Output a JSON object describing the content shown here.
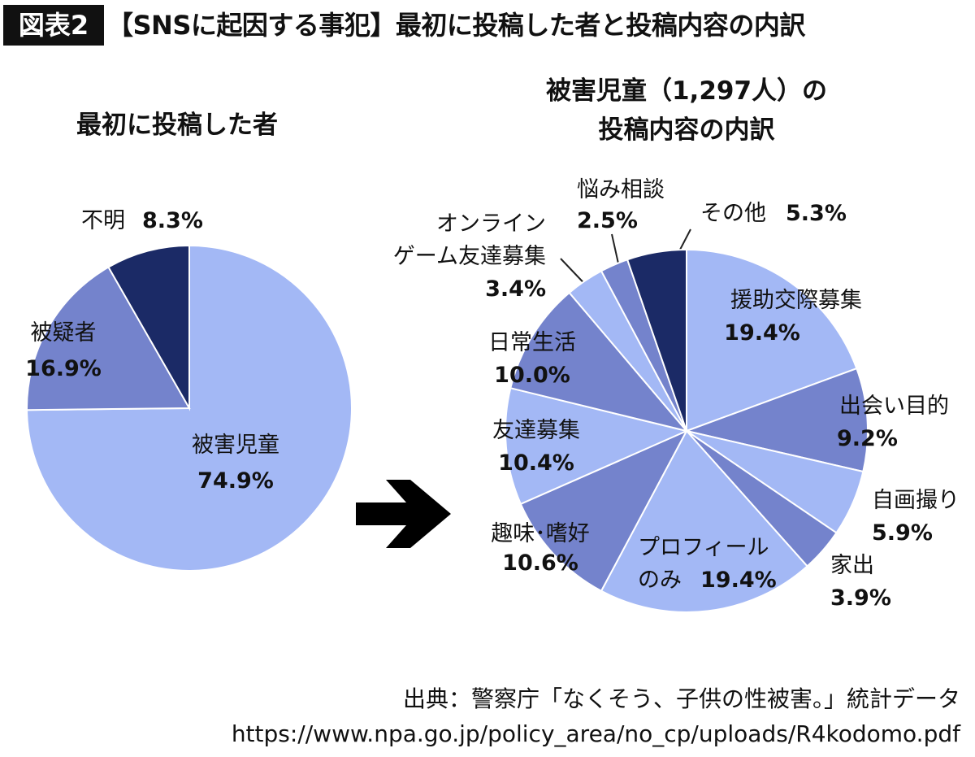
{
  "badge": "図表2",
  "title": "【SNSに起因する事犯】最初に投稿した者と投稿内容の内訳",
  "source": [
    "出典：警察庁「なくそう、子供の性被害。」統計データ",
    "https://www.npa.go.jp/policy_area/no_cp/uploads/R4kodomo.pdf"
  ],
  "chart_data": [
    {
      "type": "pie",
      "title": [
        "最初に投稿した者"
      ],
      "categories": [
        "被害児童",
        "被疑者",
        "不明"
      ],
      "values": [
        74.9,
        16.9,
        8.3
      ],
      "value_labels": [
        "74.9%",
        "16.9%",
        "8.3%"
      ],
      "colors": [
        "#a3b8f5",
        "#7483cc",
        "#1b2a66"
      ]
    },
    {
      "type": "pie",
      "title": [
        "被害児童（1,297人）の",
        "投稿内容の内訳"
      ],
      "categories": [
        "援助交際募集",
        "出会い目的",
        "自画撮り",
        "家出",
        "プロフィール\nのみ",
        "趣味･嗜好",
        "友達募集",
        "日常生活",
        "オンライン\nゲーム友達募集",
        "悩み相談",
        "その他"
      ],
      "values": [
        19.4,
        9.2,
        5.9,
        3.9,
        19.4,
        10.6,
        10.4,
        10.0,
        3.4,
        2.5,
        5.3
      ],
      "value_labels": [
        "19.4%",
        "9.2%",
        "5.9%",
        "3.9%",
        "19.4%",
        "10.6%",
        "10.4%",
        "10.0%",
        "3.4%",
        "2.5%",
        "5.3%"
      ],
      "colors": [
        "#a3b8f5",
        "#7483cc",
        "#a3b8f5",
        "#7483cc",
        "#a3b8f5",
        "#7483cc",
        "#a3b8f5",
        "#7483cc",
        "#a3b8f5",
        "#7483cc",
        "#1b2a66"
      ]
    }
  ]
}
